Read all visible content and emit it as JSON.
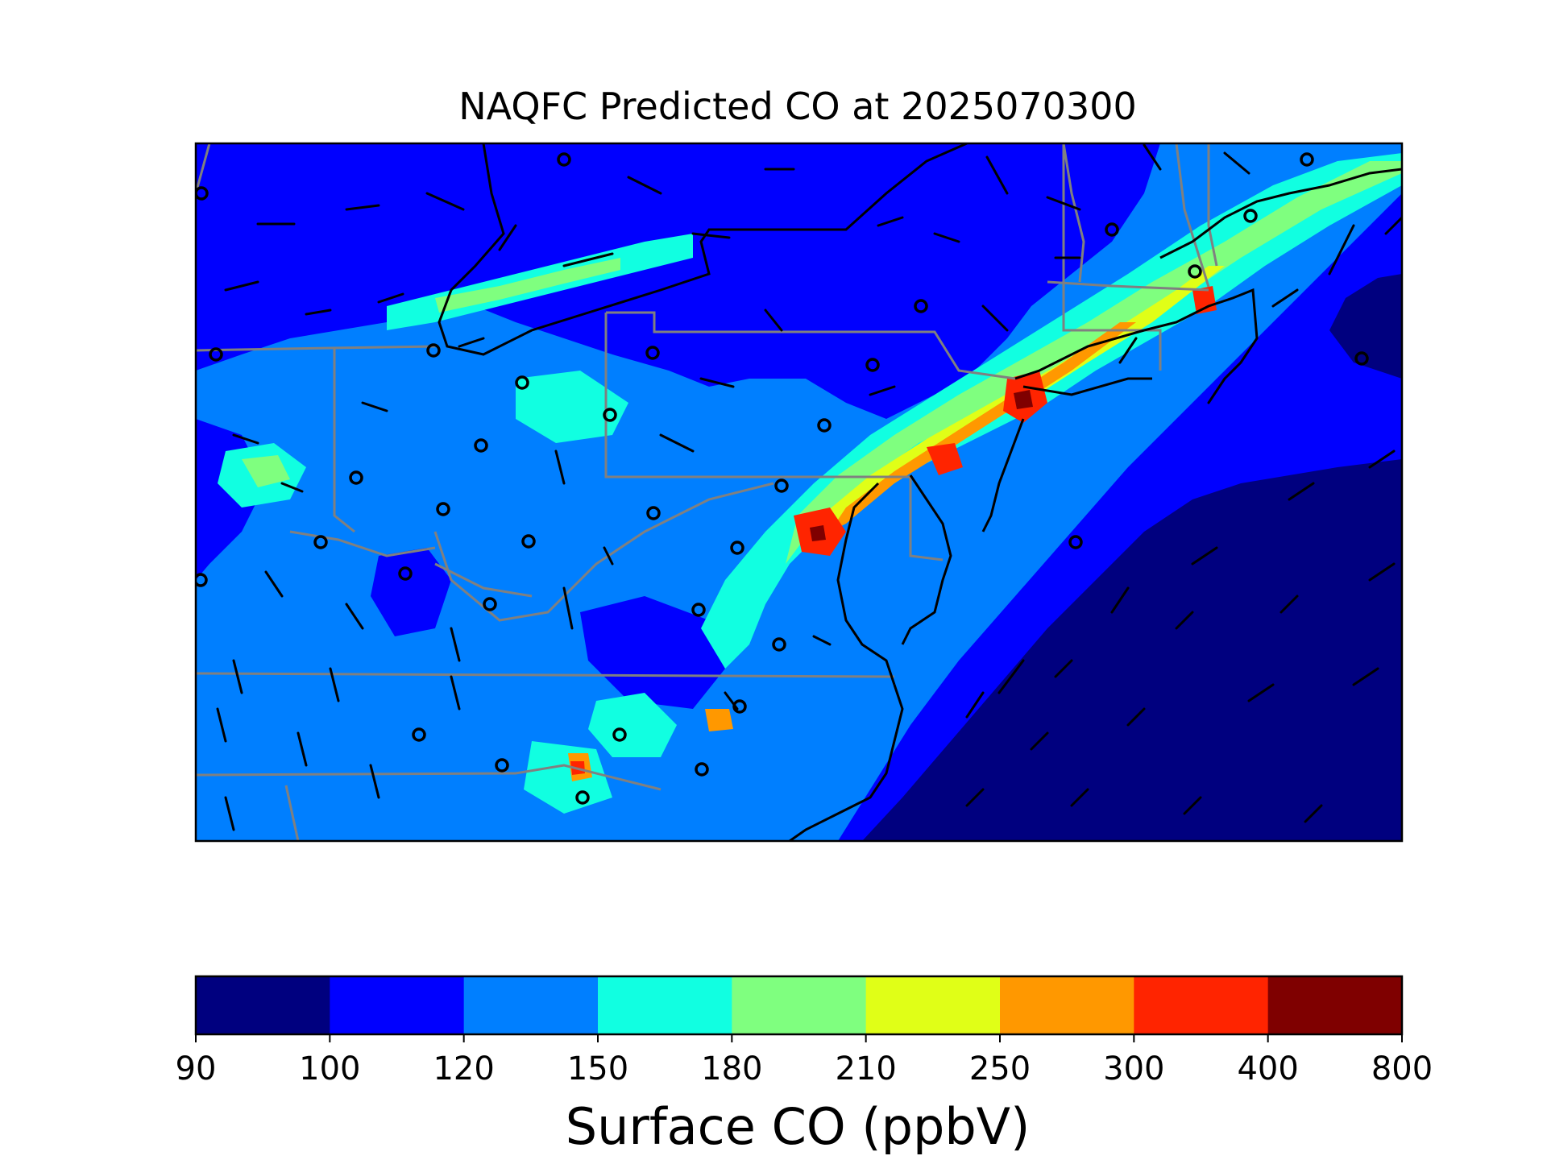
{
  "title": "NAQFC Predicted CO at 2025070300",
  "colorbar": {
    "label": "Surface CO (ppbV)",
    "ticks": [
      "90",
      "100",
      "120",
      "150",
      "180",
      "210",
      "250",
      "300",
      "400",
      "800"
    ],
    "colors": [
      "#00007f",
      "#0000ff",
      "#007fff",
      "#11ffe1",
      "#7fff7f",
      "#e0ff17",
      "#ff9800",
      "#ff2400",
      "#7f0000"
    ]
  },
  "colors": {
    "state_borders": "#808080",
    "coastline": "#000000",
    "wind_barbs": "#000000",
    "station_markers": "#000000",
    "frame": "#000000"
  },
  "map": {
    "extent_lon": [
      -90,
      -65
    ],
    "extent_lat": [
      34,
      47
    ],
    "field_description": "Surface CO concentration field over the Northeastern United States; elevated values along the I-95 corridor (Washington DC to Boston) and Great Lakes shoreline, lowest values over the Atlantic Ocean.",
    "wind_barbs_shown": true,
    "station_markers_shown": true
  }
}
